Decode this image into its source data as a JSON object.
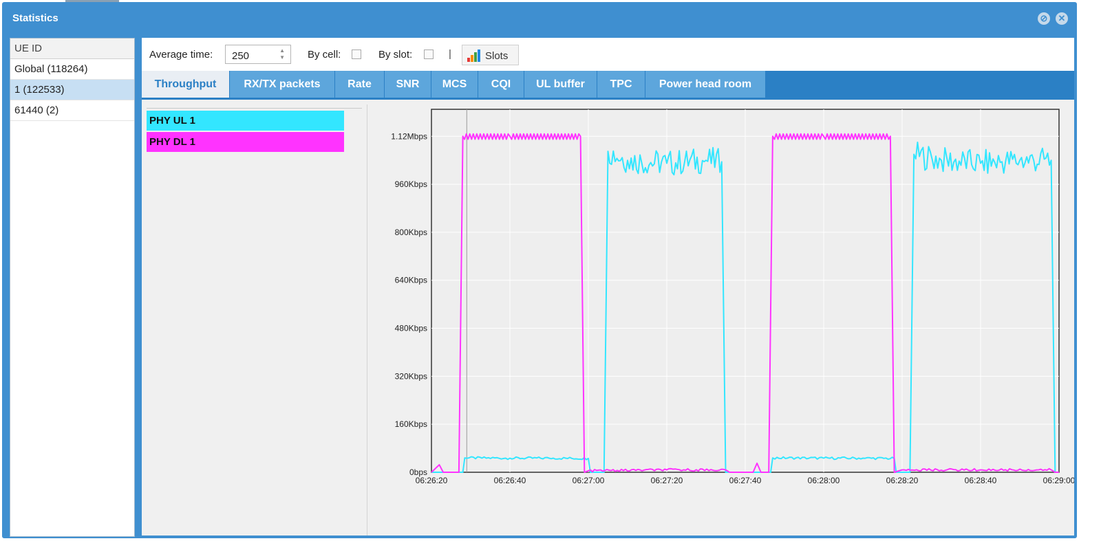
{
  "window": {
    "title": "Statistics"
  },
  "ue_panel": {
    "header": "UE ID",
    "rows": [
      {
        "label": "Global (118264)",
        "selected": false
      },
      {
        "label": "1 (122533)",
        "selected": true
      },
      {
        "label": "61440 (2)",
        "selected": false
      }
    ]
  },
  "toolbar": {
    "average_time_label": "Average time:",
    "average_time_value": "250",
    "by_cell_label": "By cell:",
    "by_cell_checked": false,
    "by_slot_label": "By slot:",
    "by_slot_checked": false,
    "separator": "|",
    "slots_label": "Slots",
    "slots_icon": "bar-chart-icon"
  },
  "tabs": [
    {
      "label": "Throughput",
      "active": true
    },
    {
      "label": "RX/TX packets",
      "active": false
    },
    {
      "label": "Rate",
      "active": false
    },
    {
      "label": "SNR",
      "active": false
    },
    {
      "label": "MCS",
      "active": false
    },
    {
      "label": "CQI",
      "active": false
    },
    {
      "label": "UL buffer",
      "active": false
    },
    {
      "label": "TPC",
      "active": false
    },
    {
      "label": "Power head room",
      "active": false
    }
  ],
  "legend": [
    {
      "label": "PHY UL 1",
      "color": "#33e6ff"
    },
    {
      "label": "PHY DL 1",
      "color": "#ff33ff"
    }
  ],
  "chart_data": {
    "type": "line",
    "x_ticks": [
      "06:26:20",
      "06:26:40",
      "06:27:00",
      "06:27:20",
      "06:27:40",
      "06:28:00",
      "06:28:20",
      "06:28:40",
      "06:29:00"
    ],
    "y_ticks": [
      "0bps",
      "160Kbps",
      "320Kbps",
      "480Kbps",
      "640Kbps",
      "800Kbps",
      "960Kbps",
      "1.12Mbps"
    ],
    "ylim_kbps": [
      0,
      1210
    ],
    "xlim": [
      "06:26:20",
      "06:29:00"
    ],
    "grid": true,
    "series": [
      {
        "name": "PHY UL 1",
        "color": "#33e6ff",
        "points_time_kbps": [
          [
            "06:26:20",
            0
          ],
          [
            "06:26:28",
            0
          ],
          [
            "06:26:28.5",
            48
          ],
          [
            "06:26:40",
            47
          ],
          [
            "06:26:50",
            47
          ],
          [
            "06:27:00",
            46
          ],
          [
            "06:27:00.5",
            0
          ],
          [
            "06:27:04",
            0
          ],
          [
            "06:27:05",
            1070
          ],
          [
            "06:27:10",
            1040
          ],
          [
            "06:27:20",
            1030
          ],
          [
            "06:27:30",
            1040
          ],
          [
            "06:27:34",
            1035
          ],
          [
            "06:27:35",
            0
          ],
          [
            "06:27:45",
            0
          ],
          [
            "06:27:46.5",
            0
          ],
          [
            "06:27:47",
            48
          ],
          [
            "06:28:00",
            47
          ],
          [
            "06:28:10",
            47
          ],
          [
            "06:28:18",
            46
          ],
          [
            "06:28:18.5",
            0
          ],
          [
            "06:28:22",
            0
          ],
          [
            "06:28:23",
            1060
          ],
          [
            "06:28:30",
            1040
          ],
          [
            "06:28:40",
            1030
          ],
          [
            "06:28:50",
            1040
          ],
          [
            "06:28:58",
            1040
          ],
          [
            "06:28:59",
            0
          ],
          [
            "06:29:00",
            0
          ]
        ]
      },
      {
        "name": "PHY DL 1",
        "color": "#ff33ff",
        "points_time_kbps": [
          [
            "06:26:20",
            0
          ],
          [
            "06:26:22",
            25
          ],
          [
            "06:26:23",
            0
          ],
          [
            "06:26:27",
            0
          ],
          [
            "06:26:28",
            1120
          ],
          [
            "06:26:40",
            1120
          ],
          [
            "06:26:58",
            1120
          ],
          [
            "06:26:59",
            0
          ],
          [
            "06:27:00",
            5
          ],
          [
            "06:27:20",
            8
          ],
          [
            "06:27:35",
            8
          ],
          [
            "06:27:36",
            0
          ],
          [
            "06:27:42",
            0
          ],
          [
            "06:27:43",
            30
          ],
          [
            "06:27:44",
            0
          ],
          [
            "06:27:46",
            0
          ],
          [
            "06:27:47",
            1120
          ],
          [
            "06:28:00",
            1120
          ],
          [
            "06:28:17",
            1120
          ],
          [
            "06:28:18",
            0
          ],
          [
            "06:28:20",
            8
          ],
          [
            "06:28:40",
            8
          ],
          [
            "06:28:58",
            8
          ],
          [
            "06:28:59",
            0
          ],
          [
            "06:29:00",
            0
          ]
        ]
      }
    ]
  }
}
